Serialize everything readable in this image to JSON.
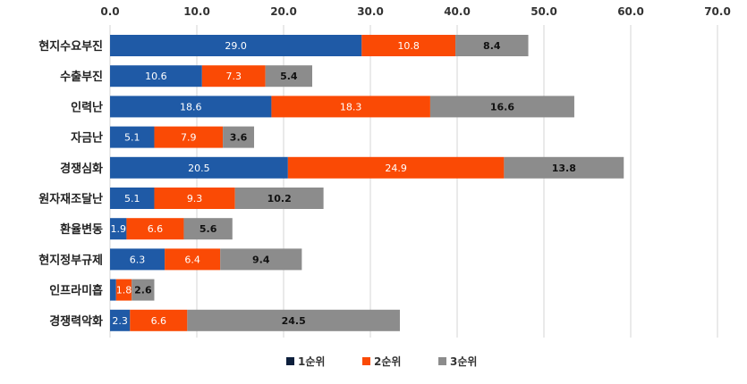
{
  "chart_data": {
    "type": "bar",
    "orientation": "horizontal",
    "stacked": true,
    "categories": [
      "현지수요부진",
      "수출부진",
      "인력난",
      "자금난",
      "경쟁심화",
      "원자재조달난",
      "환율변동",
      "현지정부규제",
      "인프라미흡",
      "경쟁력악화"
    ],
    "series": [
      {
        "name": "1순위",
        "color": "#1f5aa6",
        "values": [
          29.0,
          10.6,
          18.6,
          5.1,
          20.5,
          5.1,
          1.9,
          6.3,
          0.7,
          2.3
        ],
        "labels": [
          "29.0",
          "10.6",
          "18.6",
          "5.1",
          "20.5",
          "5.1",
          "1.9",
          "6.3",
          "",
          "2.3"
        ],
        "label_color": "#ffffff"
      },
      {
        "name": "2순위",
        "color": "#fa4a05",
        "values": [
          10.8,
          7.3,
          18.3,
          7.9,
          24.9,
          9.3,
          6.6,
          6.4,
          1.8,
          6.6
        ],
        "labels": [
          "10.8",
          "7.3",
          "18.3",
          "7.9",
          "24.9",
          "9.3",
          "6.6",
          "6.4",
          "1.8",
          "6.6"
        ],
        "label_color": "#ffffff"
      },
      {
        "name": "3순위",
        "color": "#8c8c8c",
        "values": [
          8.4,
          5.4,
          16.6,
          3.6,
          13.8,
          10.2,
          5.6,
          9.4,
          2.6,
          24.5
        ],
        "labels": [
          "8.4",
          "5.4",
          "16.6",
          "3.6",
          "13.8",
          "10.2",
          "5.6",
          "9.4",
          "2.6",
          "24.5"
        ],
        "label_color": "#111111"
      }
    ],
    "xlim": [
      0,
      70
    ],
    "xticks": [
      "0.0",
      "10.0",
      "20.0",
      "30.0",
      "40.0",
      "50.0",
      "60.0",
      "70.0"
    ],
    "grid": true,
    "legend_position": "bottom",
    "title": "",
    "xlabel": "",
    "ylabel": ""
  }
}
